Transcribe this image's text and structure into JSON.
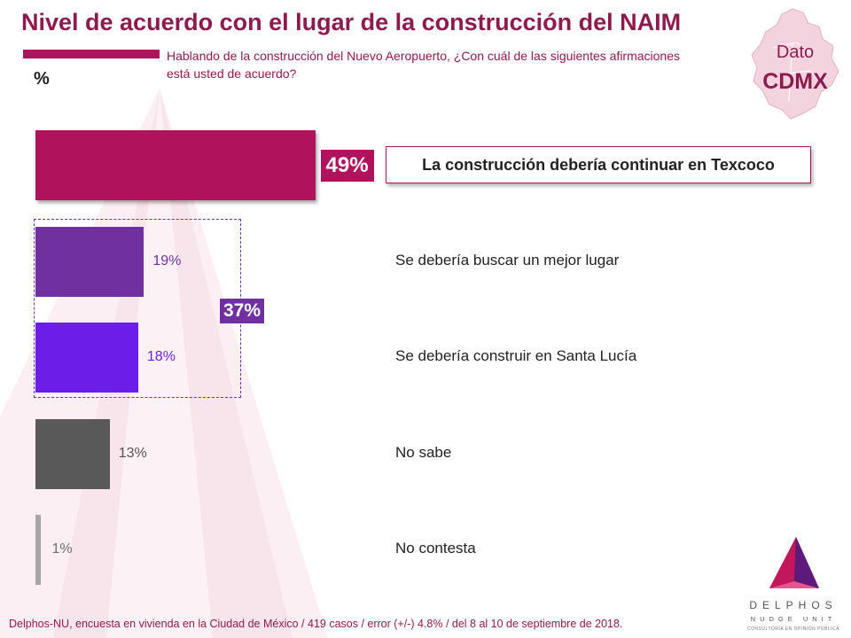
{
  "title": "Nivel de acuerdo con el lugar de la construcción del NAIM",
  "subtitle": "Hablando de la construcción del Nuevo Aeropuerto, ¿Con cuál de las siguientes afirmaciones está usted de acuerdo?",
  "unit_label": "%",
  "badge": {
    "line1": "Dato",
    "line2": "CDMX"
  },
  "chart_data": {
    "type": "bar",
    "orientation": "horizontal",
    "title": "Nivel de acuerdo con el lugar de la construcción del NAIM",
    "ylabel": "%",
    "xlim": [
      0,
      100
    ],
    "categories": [
      "La construcción debería continuar en Texcoco",
      "Se debería buscar un mejor lugar",
      "Se debería construir en Santa Lucía",
      "No sabe",
      "No contesta"
    ],
    "values": [
      49,
      19,
      18,
      13,
      1
    ],
    "value_labels": [
      "49%",
      "19%",
      "18%",
      "13%",
      "1%"
    ],
    "colors": [
      "#b0135b",
      "#7030a0",
      "#6a1ee8",
      "#595959",
      "#a6a6a6"
    ],
    "group": {
      "label": "37%",
      "members": [
        1,
        2
      ]
    }
  },
  "footer": "Delphos-NU, encuesta en vivienda en la Ciudad de México / 419 casos / error (+/-) 4.8% / del 8 al 10 de septiembre de 2018.",
  "logo": {
    "name": "DELPHOS",
    "sub": "NUDGE UNIT",
    "tagline": "CONSULTORÍA EN OPINIÓN PÚBLICA"
  }
}
